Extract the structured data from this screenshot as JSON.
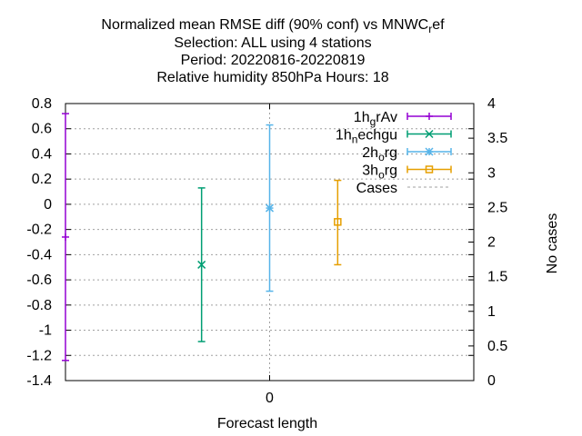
{
  "chart_data": {
    "type": "scatter",
    "title_lines": [
      "Normalized mean RMSE diff (90% conf) vs MNWC",
      "Selection: ALL using     4 stations",
      "Period: 20220816-20220819",
      "Relative humidity 850hPa    Hours:  18"
    ],
    "title_suffix": {
      "sub": "r",
      "rest": "ef"
    },
    "xlabel": "Forecast length",
    "ylabel": "",
    "y2label": "No cases",
    "x_ticks": [
      "0"
    ],
    "ylim": [
      -1.4,
      0.8
    ],
    "y_ticks": [
      "0.8",
      "0.6",
      "0.4",
      "0.2",
      "0",
      "-0.2",
      "-0.4",
      "-0.6",
      "-0.8",
      "-1",
      "-1.2",
      "-1.4"
    ],
    "y2lim": [
      0,
      4
    ],
    "y2_ticks": [
      "4",
      "3.5",
      "3",
      "2.5",
      "2",
      "1.5",
      "1",
      "0.5",
      "0"
    ],
    "grid": true,
    "legend_position": "top-right",
    "legend": [
      {
        "main": "1h",
        "sub": "g",
        "rest": "rAv",
        "marker": "plus",
        "color": "#9400d3"
      },
      {
        "main": "1h",
        "sub": "n",
        "rest": "echgu",
        "marker": "x",
        "color": "#009e73"
      },
      {
        "main": "2h",
        "sub": "o",
        "rest": "rg",
        "marker": "star",
        "color": "#56b4e9"
      },
      {
        "main": "3h",
        "sub": "o",
        "rest": "rg",
        "marker": "square",
        "color": "#e69f00"
      },
      {
        "main": "Cases",
        "sub": "",
        "rest": "",
        "marker": "dash",
        "color": "#a0a0a0"
      }
    ],
    "series": [
      {
        "name": "1hgrAv",
        "x_offset": -0.3,
        "y": -0.26,
        "low": -1.24,
        "high": 0.72
      },
      {
        "name": "1hnechgu",
        "x_offset": -0.1,
        "y": -0.48,
        "low": -1.09,
        "high": 0.13
      },
      {
        "name": "2horg",
        "x_offset": 0.0,
        "y": -0.03,
        "low": -0.69,
        "high": 0.63
      },
      {
        "name": "3horg",
        "x_offset": 0.1,
        "y": -0.14,
        "low": -0.48,
        "high": 0.19
      }
    ]
  }
}
